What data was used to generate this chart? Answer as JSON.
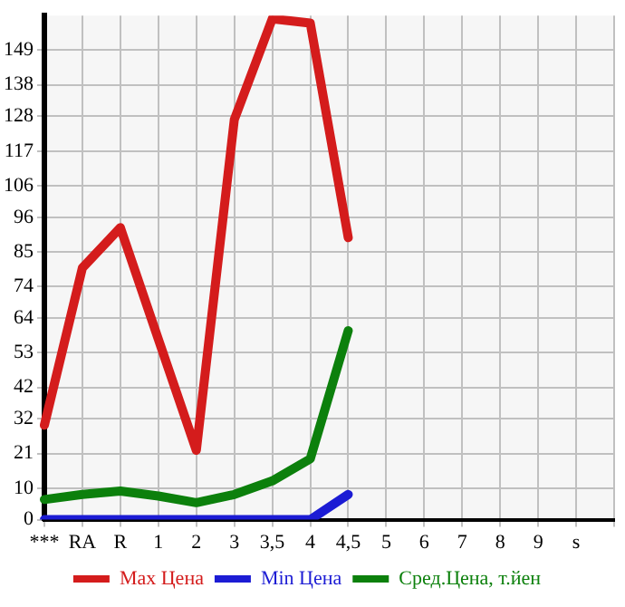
{
  "chart_data": {
    "type": "line",
    "categories": [
      "***",
      "RA",
      "R",
      "1",
      "2",
      "3",
      "3,5",
      "4",
      "4,5",
      "5",
      "6",
      "7",
      "8",
      "9",
      "s",
      null
    ],
    "series": [
      {
        "name": "Max Цена",
        "color": "#d41c1c",
        "values": [
          30,
          79.9,
          92.7,
          57.3,
          22,
          127,
          159,
          157.6,
          89.5,
          null,
          null,
          null,
          null,
          null,
          null,
          null
        ]
      },
      {
        "name": "Min Цена",
        "color": "#1c1cd4",
        "values": [
          0,
          0,
          0,
          0,
          0,
          0,
          0,
          0,
          8,
          null,
          null,
          null,
          null,
          null,
          null,
          null
        ]
      },
      {
        "name": "Сред.Цена, т.йен",
        "color": "#0c800c",
        "values": [
          6.4,
          8,
          9.1,
          7.5,
          5.4,
          8,
          12.3,
          19.3,
          60,
          null,
          null,
          null,
          null,
          null,
          null,
          null
        ]
      }
    ],
    "ylim": [
      0,
      160
    ],
    "yticks": [
      0,
      10,
      21,
      32,
      42,
      53,
      64,
      74,
      85,
      96,
      106,
      117,
      128,
      138,
      149
    ],
    "grid": true,
    "legend": "bottom",
    "marker": "none",
    "line_style": "solid"
  }
}
